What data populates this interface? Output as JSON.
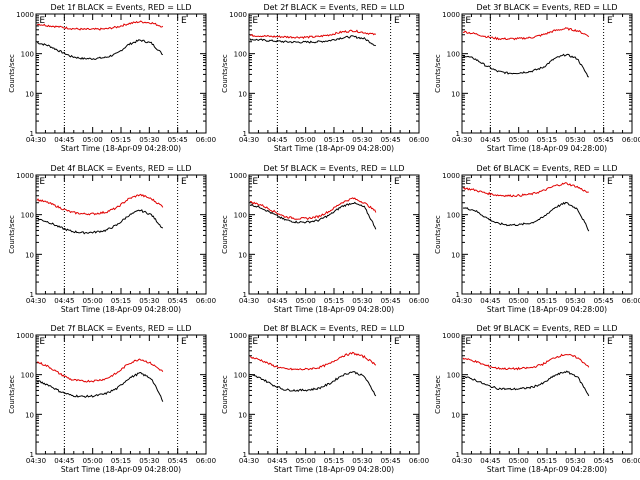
{
  "chart_data": [
    {
      "type": "line",
      "title": "Det 1f BLACK = Events, RED = LLD",
      "xlabel": "Start Time (18-Apr-09 04:28:00)",
      "ylabel": "Counts/sec",
      "xticks": [
        "04:30",
        "04:45",
        "05:00",
        "05:15",
        "05:30",
        "05:45",
        "06:00"
      ],
      "yticks": [
        "1",
        "10",
        "100",
        "1000"
      ],
      "ylim": [
        1,
        1000
      ],
      "yscale": "log",
      "series": [
        {
          "color": "#000000",
          "values": [
            190,
            160,
            115,
            85,
            75,
            75,
            80,
            100,
            170,
            220,
            185,
            95
          ]
        },
        {
          "color": "#e00000",
          "values": [
            560,
            510,
            470,
            430,
            410,
            410,
            420,
            470,
            570,
            640,
            600,
            480
          ]
        }
      ]
    },
    {
      "type": "line",
      "title": "Det 2f BLACK = Events, RED = LLD",
      "xlabel": "Start Time (18-Apr-09 04:28:00)",
      "ylabel": "Counts/sec",
      "xticks": [
        "04:30",
        "04:45",
        "05:00",
        "05:15",
        "05:30",
        "05:45",
        "06:00"
      ],
      "yticks": [
        "1",
        "10",
        "100",
        "1000"
      ],
      "ylim": [
        1,
        1000
      ],
      "yscale": "log",
      "series": [
        {
          "color": "#000000",
          "values": [
            230,
            220,
            210,
            200,
            195,
            195,
            200,
            215,
            250,
            270,
            240,
            160
          ]
        },
        {
          "color": "#e00000",
          "values": [
            290,
            280,
            270,
            265,
            260,
            260,
            270,
            300,
            350,
            380,
            340,
            300
          ]
        }
      ]
    },
    {
      "type": "line",
      "title": "Det 3f BLACK = Events, RED = LLD",
      "xlabel": "Start Time (18-Apr-09 04:28:00)",
      "ylabel": "Counts/sec",
      "xticks": [
        "04:30",
        "04:45",
        "05:00",
        "05:15",
        "05:30",
        "05:45",
        "06:00"
      ],
      "yticks": [
        "1",
        "10",
        "100",
        "1000"
      ],
      "ylim": [
        1,
        1000
      ],
      "yscale": "log",
      "series": [
        {
          "color": "#000000",
          "values": [
            90,
            75,
            50,
            36,
            32,
            33,
            36,
            45,
            75,
            95,
            75,
            25
          ]
        },
        {
          "color": "#e00000",
          "values": [
            360,
            320,
            270,
            240,
            235,
            240,
            255,
            300,
            380,
            430,
            380,
            280
          ]
        }
      ]
    },
    {
      "type": "line",
      "title": "Det 4f BLACK = Events, RED = LLD",
      "xlabel": "Start Time (18-Apr-09 04:28:00)",
      "ylabel": "Counts/sec",
      "xticks": [
        "04:30",
        "04:45",
        "05:00",
        "05:15",
        "05:30",
        "05:45",
        "06:00"
      ],
      "yticks": [
        "1",
        "10",
        "100",
        "1000"
      ],
      "ylim": [
        1,
        1000
      ],
      "yscale": "log",
      "series": [
        {
          "color": "#000000",
          "values": [
            80,
            65,
            48,
            38,
            35,
            36,
            40,
            55,
            95,
            130,
            100,
            45
          ]
        },
        {
          "color": "#e00000",
          "values": [
            240,
            200,
            150,
            115,
            105,
            105,
            115,
            150,
            250,
            320,
            250,
            160
          ]
        }
      ]
    },
    {
      "type": "line",
      "title": "Det 5f BLACK = Events, RED = LLD",
      "xlabel": "Start Time (18-Apr-09 04:28:00)",
      "ylabel": "Counts/sec",
      "xticks": [
        "04:30",
        "04:45",
        "05:00",
        "05:15",
        "05:30",
        "05:45",
        "06:00"
      ],
      "yticks": [
        "1",
        "10",
        "100",
        "1000"
      ],
      "ylim": [
        1,
        1000
      ],
      "yscale": "log",
      "series": [
        {
          "color": "#000000",
          "values": [
            180,
            150,
            105,
            75,
            65,
            65,
            72,
            100,
            160,
            200,
            155,
            45
          ]
        },
        {
          "color": "#e00000",
          "values": [
            210,
            175,
            125,
            90,
            80,
            80,
            90,
            125,
            200,
            260,
            200,
            120
          ]
        }
      ]
    },
    {
      "type": "line",
      "title": "Det 6f BLACK = Events, RED = LLD",
      "xlabel": "Start Time (18-Apr-09 04:28:00)",
      "ylabel": "Counts/sec",
      "xticks": [
        "04:30",
        "04:45",
        "05:00",
        "05:15",
        "05:30",
        "05:45",
        "06:00"
      ],
      "yticks": [
        "1",
        "10",
        "100",
        "1000"
      ],
      "ylim": [
        1,
        1000
      ],
      "yscale": "log",
      "series": [
        {
          "color": "#000000",
          "values": [
            150,
            130,
            85,
            60,
            55,
            56,
            62,
            85,
            150,
            200,
            140,
            40
          ]
        },
        {
          "color": "#e00000",
          "values": [
            470,
            420,
            350,
            310,
            300,
            305,
            330,
            400,
            530,
            620,
            500,
            350
          ]
        }
      ]
    },
    {
      "type": "line",
      "title": "Det 7f BLACK = Events, RED = LLD",
      "xlabel": "Start Time (18-Apr-09 04:28:00)",
      "ylabel": "Counts/sec",
      "xticks": [
        "04:30",
        "04:45",
        "05:00",
        "05:15",
        "05:30",
        "05:45",
        "06:00"
      ],
      "yticks": [
        "1",
        "10",
        "100",
        "1000"
      ],
      "ylim": [
        1,
        1000
      ],
      "yscale": "log",
      "series": [
        {
          "color": "#000000",
          "values": [
            70,
            55,
            38,
            30,
            28,
            29,
            33,
            45,
            80,
            110,
            80,
            22
          ]
        },
        {
          "color": "#e00000",
          "values": [
            210,
            160,
            105,
            75,
            68,
            70,
            78,
            110,
            190,
            250,
            190,
            120
          ]
        }
      ]
    },
    {
      "type": "line",
      "title": "Det 8f BLACK = Events, RED = LLD",
      "xlabel": "Start Time (18-Apr-09 04:28:00)",
      "ylabel": "Counts/sec",
      "xticks": [
        "04:30",
        "04:45",
        "05:00",
        "05:15",
        "05:30",
        "05:45",
        "06:00"
      ],
      "yticks": [
        "1",
        "10",
        "100",
        "1000"
      ],
      "ylim": [
        1,
        1000
      ],
      "yscale": "log",
      "series": [
        {
          "color": "#000000",
          "values": [
            100,
            80,
            55,
            42,
            40,
            41,
            45,
            60,
            95,
            120,
            90,
            30
          ]
        },
        {
          "color": "#e00000",
          "values": [
            280,
            230,
            170,
            140,
            135,
            138,
            150,
            190,
            290,
            350,
            280,
            180
          ]
        }
      ]
    },
    {
      "type": "line",
      "title": "Det 9f BLACK = Events, RED = LLD",
      "xlabel": "Start Time (18-Apr-09 04:28:00)",
      "ylabel": "Counts/sec",
      "xticks": [
        "04:30",
        "04:45",
        "05:00",
        "05:15",
        "05:30",
        "05:45",
        "06:00"
      ],
      "yticks": [
        "1",
        "10",
        "100",
        "1000"
      ],
      "ylim": [
        1,
        1000
      ],
      "yscale": "log",
      "series": [
        {
          "color": "#000000",
          "values": [
            90,
            75,
            55,
            45,
            43,
            44,
            48,
            60,
            95,
            120,
            90,
            30
          ]
        },
        {
          "color": "#e00000",
          "values": [
            260,
            220,
            170,
            145,
            140,
            142,
            150,
            185,
            270,
            330,
            270,
            160
          ]
        }
      ]
    }
  ]
}
